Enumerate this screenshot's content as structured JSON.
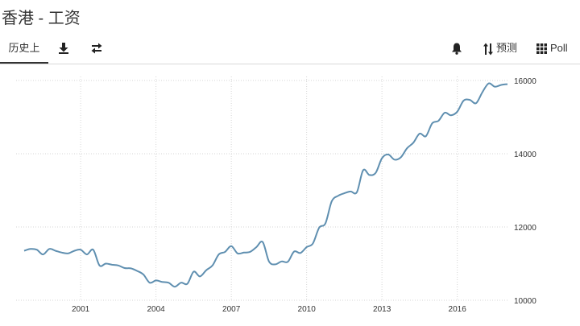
{
  "page": {
    "title": "香港 - 工资"
  },
  "toolbar": {
    "tab_history": "历史上",
    "forecast_label": "预测",
    "poll_label": "Poll",
    "icons": [
      "download-icon",
      "swap-icon",
      "bell-icon",
      "sort-icon",
      "grid-icon"
    ]
  },
  "chart_data": {
    "type": "line",
    "title": "",
    "xlabel": "",
    "ylabel": "",
    "x_ticks": [
      "2001",
      "2004",
      "2007",
      "2010",
      "2013",
      "2016"
    ],
    "y_ticks": [
      "10000",
      "12000",
      "14000",
      "16000"
    ],
    "xlim": [
      1998.75,
      2018.0
    ],
    "ylim": [
      10000,
      16000
    ],
    "grid": true,
    "line_color": "#5f8fb0",
    "series": [
      {
        "x": [
          1998.75,
          1999.0,
          1999.25,
          1999.5,
          1999.75,
          2000.0,
          2000.25,
          2000.5,
          2000.75,
          2001.0,
          2001.25,
          2001.5,
          2001.75,
          2002.0,
          2002.25,
          2002.5,
          2002.75,
          2003.0,
          2003.25,
          2003.5,
          2003.75,
          2004.0,
          2004.25,
          2004.5,
          2004.75,
          2005.0,
          2005.25,
          2005.5,
          2005.75,
          2006.0,
          2006.25,
          2006.5,
          2006.75,
          2007.0,
          2007.25,
          2007.5,
          2007.75,
          2008.0,
          2008.25,
          2008.5,
          2008.75,
          2009.0,
          2009.25,
          2009.5,
          2009.75,
          2010.0,
          2010.25,
          2010.5,
          2010.75,
          2011.0,
          2011.25,
          2011.5,
          2011.75,
          2012.0,
          2012.25,
          2012.5,
          2012.75,
          2013.0,
          2013.25,
          2013.5,
          2013.75,
          2014.0,
          2014.25,
          2014.5,
          2014.75,
          2015.0,
          2015.25,
          2015.5,
          2015.75,
          2016.0,
          2016.25,
          2016.5,
          2016.75,
          2017.0,
          2017.25,
          2017.5,
          2017.75,
          2018.0
        ],
        "values": [
          11350,
          11400,
          11380,
          11250,
          11400,
          11350,
          11300,
          11280,
          11350,
          11380,
          11250,
          11380,
          10950,
          11000,
          10970,
          10950,
          10880,
          10870,
          10800,
          10700,
          10480,
          10540,
          10500,
          10480,
          10370,
          10480,
          10450,
          10780,
          10650,
          10820,
          10950,
          11250,
          11320,
          11480,
          11280,
          11300,
          11320,
          11450,
          11590,
          11060,
          10980,
          11060,
          11050,
          11330,
          11290,
          11450,
          11550,
          11980,
          12100,
          12700,
          12850,
          12920,
          12970,
          12950,
          13550,
          13420,
          13480,
          13880,
          13980,
          13840,
          13900,
          14150,
          14300,
          14550,
          14480,
          14830,
          14900,
          15120,
          15050,
          15150,
          15450,
          15470,
          15380,
          15680,
          15920,
          15830,
          15880,
          15900
        ]
      }
    ]
  }
}
